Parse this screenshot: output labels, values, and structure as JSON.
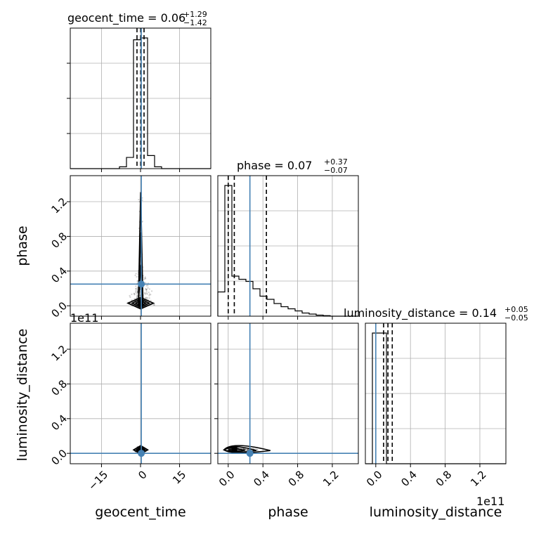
{
  "chart_data": {
    "type": "corner",
    "parameters": [
      "geocent_time",
      "phase",
      "luminosity_distance"
    ],
    "axis_labels": {
      "geocent_time": "geocent_time",
      "phase": "phase",
      "luminosity_distance": "luminosity_distance"
    },
    "titles": [
      {
        "param": "geocent_time",
        "text": "geocent_time = 0.06",
        "sup": "+1.29",
        "sub": "−1.42"
      },
      {
        "param": "phase",
        "text": "phase = 0.07",
        "sup": "+0.37",
        "sub": "−0.07"
      },
      {
        "param": "luminosity_distance",
        "text": "luminosity_distance = 0.14",
        "sup": "+0.05",
        "sub": "−0.05"
      }
    ],
    "ranges": {
      "geocent_time": [
        -27,
        27
      ],
      "phase": [
        -0.12,
        1.5
      ],
      "luminosity_distance": [
        -0.12,
        1.5
      ]
    },
    "ticks": {
      "geocent_time": {
        "values": [
          -15,
          0,
          15
        ],
        "labels": [
          "−15",
          "0",
          "15"
        ]
      },
      "phase": {
        "values": [
          0.0,
          0.4,
          0.8,
          1.2
        ],
        "labels": [
          "0.0",
          "0.4",
          "0.8",
          "1.2"
        ]
      },
      "luminosity_distance": {
        "values": [
          0.0,
          0.4,
          0.8,
          1.2
        ],
        "labels": [
          "0.0",
          "0.4",
          "0.8",
          "1.2"
        ]
      }
    },
    "offset_text": "1e11",
    "injection": {
      "geocent_time": 0.3,
      "phase": 0.25,
      "luminosity_distance": 0.0
    },
    "quantiles": {
      "geocent_time": [
        -1.36,
        0.06,
        1.35
      ],
      "phase": [
        0.0,
        0.07,
        0.44
      ],
      "luminosity_distance": [
        0.09,
        0.14,
        0.19
      ]
    },
    "histograms": {
      "geocent_time": {
        "edges": [
          -27,
          -24.3,
          -21.6,
          -18.9,
          -16.2,
          -13.5,
          -10.8,
          -8.1,
          -5.4,
          -2.7,
          0,
          2.7,
          5.4,
          8.1,
          10.8,
          13.5,
          16.2,
          18.9,
          21.6,
          24.3,
          27
        ],
        "counts": [
          0,
          0,
          0,
          0,
          0,
          0,
          0,
          0.1,
          0.6,
          6.9,
          7.0,
          0.7,
          0.1,
          0,
          0,
          0,
          0,
          0,
          0,
          0
        ]
      },
      "phase": {
        "edges": [
          -0.12,
          -0.039,
          0.042,
          0.123,
          0.204,
          0.285,
          0.366,
          0.447,
          0.528,
          0.609,
          0.69,
          0.771,
          0.852,
          0.933,
          1.014,
          1.095,
          1.176,
          1.257,
          1.338,
          1.419,
          1.5
        ],
        "counts": [
          2.3,
          12.4,
          3.8,
          3.5,
          3.3,
          2.6,
          1.9,
          1.6,
          1.2,
          0.9,
          0.7,
          0.5,
          0.3,
          0.2,
          0.1,
          0.05,
          0,
          0,
          0,
          0
        ]
      },
      "luminosity_distance": {
        "edges": [
          -0.12,
          -0.039,
          0.042,
          0.123,
          0.204,
          0.285,
          0.366,
          0.447,
          0.528,
          0.609,
          0.69,
          0.771,
          0.852,
          0.933,
          1.014,
          1.095,
          1.176,
          1.257,
          1.338,
          1.419,
          1.5
        ],
        "counts": [
          0,
          9,
          9,
          0,
          0,
          0,
          0,
          0,
          0,
          0,
          0,
          0,
          0,
          0,
          0,
          0,
          0,
          0,
          0,
          0
        ]
      }
    },
    "grid": true
  }
}
